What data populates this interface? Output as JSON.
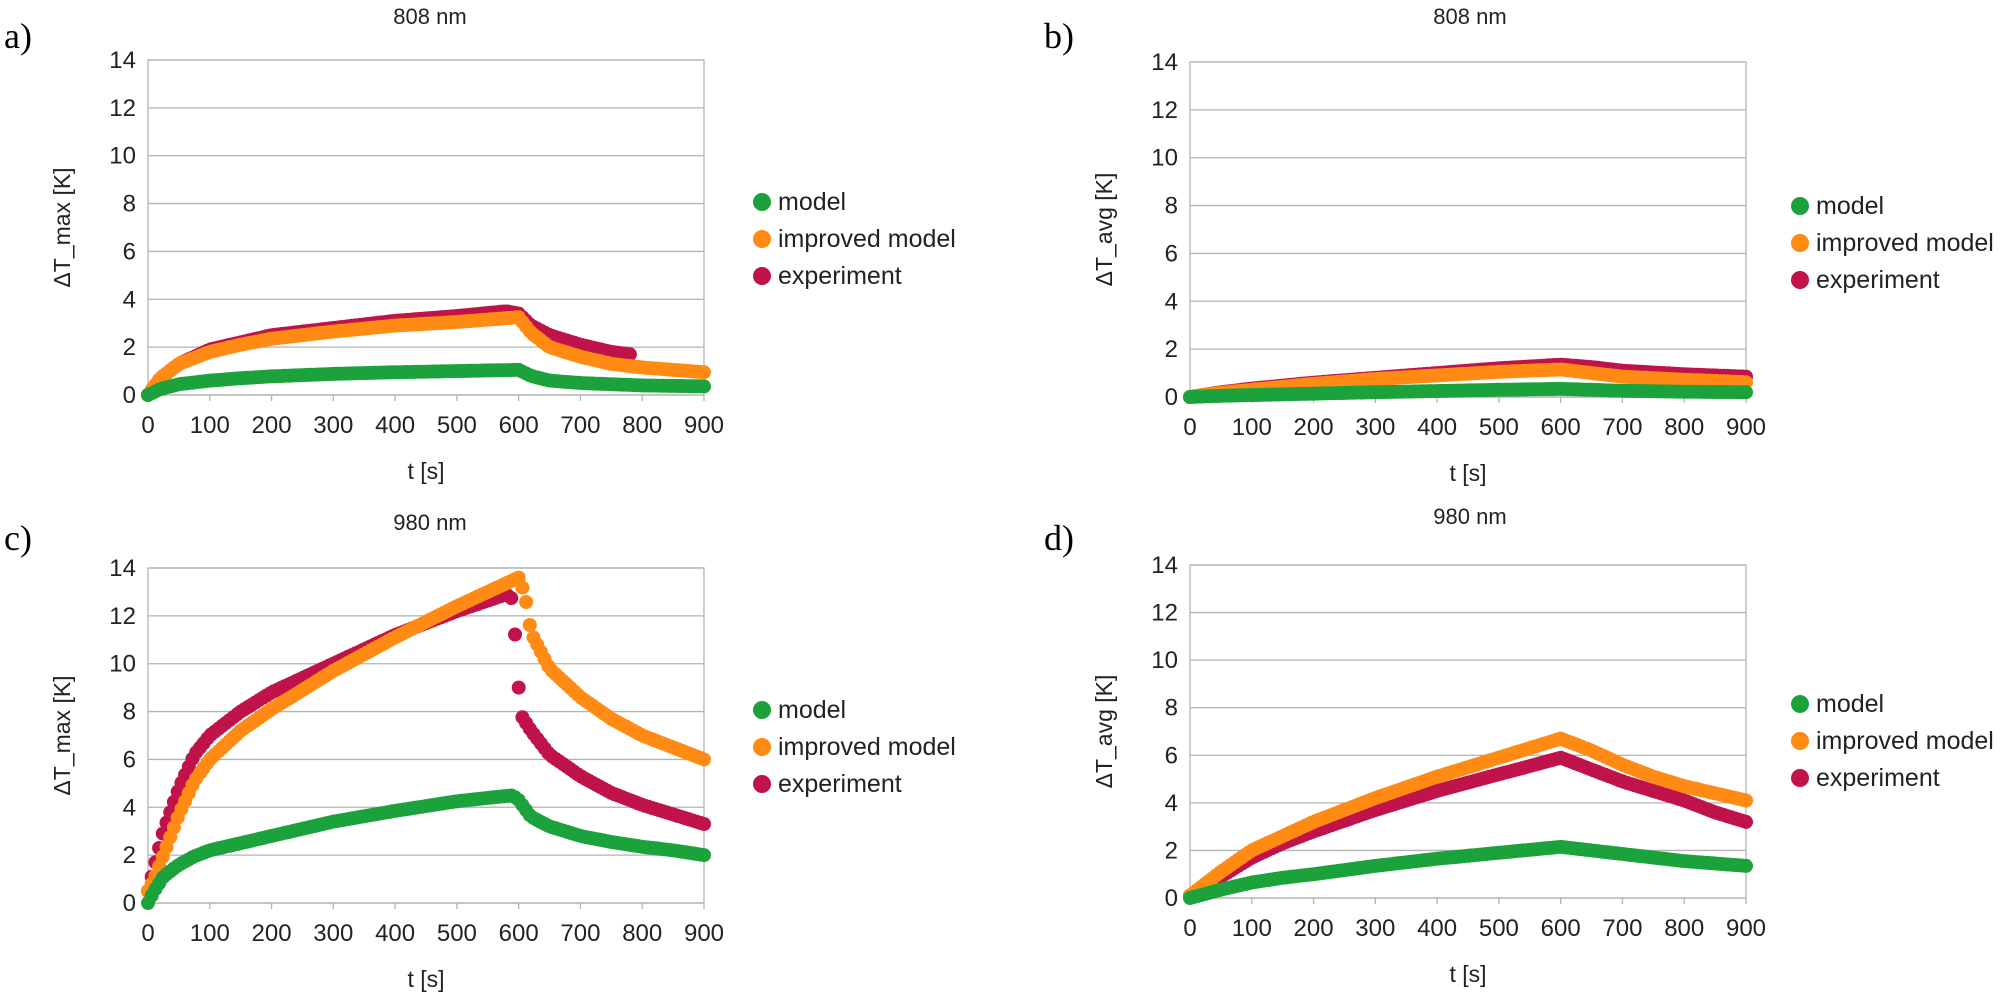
{
  "chart_data": [
    {
      "type": "scatter",
      "panel_label": "a)",
      "title": "808 nm",
      "xlabel": "t [s]",
      "ylabel": "ΔT_max [K]",
      "xlim": [
        0,
        900
      ],
      "ylim": [
        0,
        14
      ],
      "xticks": [
        "0",
        "100",
        "200",
        "300",
        "400",
        "500",
        "600",
        "700",
        "800",
        "900"
      ],
      "yticks": [
        "0",
        "2",
        "4",
        "6",
        "8",
        "10",
        "12",
        "14"
      ],
      "legend": "right",
      "series": [
        {
          "name": "experiment",
          "color": "#c0134a",
          "x": [
            0,
            20,
            50,
            100,
            150,
            200,
            300,
            400,
            500,
            580,
            600,
            620,
            650,
            700,
            750,
            780
          ],
          "y": [
            0,
            0.7,
            1.3,
            1.9,
            2.2,
            2.5,
            2.8,
            3.1,
            3.3,
            3.5,
            3.4,
            2.9,
            2.5,
            2.1,
            1.8,
            1.7
          ]
        },
        {
          "name": "improved model",
          "color": "#ff8a14",
          "x": [
            0,
            20,
            50,
            100,
            150,
            200,
            300,
            400,
            500,
            600,
            620,
            650,
            700,
            750,
            800,
            850,
            900
          ],
          "y": [
            0,
            0.7,
            1.3,
            1.8,
            2.1,
            2.35,
            2.65,
            2.9,
            3.05,
            3.25,
            2.6,
            2.0,
            1.6,
            1.3,
            1.15,
            1.05,
            0.95
          ]
        },
        {
          "name": "model",
          "color": "#1ca23c",
          "x": [
            0,
            20,
            50,
            100,
            150,
            200,
            300,
            400,
            500,
            600,
            620,
            650,
            700,
            750,
            800,
            850,
            900
          ],
          "y": [
            0,
            0.25,
            0.45,
            0.6,
            0.7,
            0.78,
            0.88,
            0.95,
            1.0,
            1.05,
            0.8,
            0.6,
            0.5,
            0.45,
            0.4,
            0.38,
            0.36
          ]
        }
      ]
    },
    {
      "type": "scatter",
      "panel_label": "b)",
      "title": "808 nm",
      "xlabel": "t [s]",
      "ylabel": "ΔT_avg [K]",
      "xlim": [
        0,
        900
      ],
      "ylim": [
        0,
        14
      ],
      "xticks": [
        "0",
        "100",
        "200",
        "300",
        "400",
        "500",
        "600",
        "700",
        "800",
        "900"
      ],
      "yticks": [
        "0",
        "2",
        "4",
        "6",
        "8",
        "10",
        "12",
        "14"
      ],
      "legend": "right",
      "series": [
        {
          "name": "experiment",
          "color": "#c0134a",
          "x": [
            0,
            50,
            100,
            200,
            300,
            400,
            500,
            600,
            650,
            700,
            800,
            900
          ],
          "y": [
            0,
            0.2,
            0.35,
            0.6,
            0.8,
            1.0,
            1.2,
            1.35,
            1.25,
            1.1,
            0.95,
            0.85
          ]
        },
        {
          "name": "improved model",
          "color": "#ff8a14",
          "x": [
            0,
            50,
            100,
            200,
            300,
            400,
            500,
            600,
            650,
            700,
            800,
            900
          ],
          "y": [
            0,
            0.18,
            0.3,
            0.55,
            0.75,
            0.9,
            1.05,
            1.15,
            1.0,
            0.85,
            0.72,
            0.62
          ]
        },
        {
          "name": "model",
          "color": "#1ca23c",
          "x": [
            0,
            50,
            100,
            200,
            300,
            400,
            500,
            600,
            650,
            700,
            800,
            900
          ],
          "y": [
            0,
            0.05,
            0.08,
            0.14,
            0.2,
            0.25,
            0.3,
            0.34,
            0.3,
            0.26,
            0.22,
            0.2
          ]
        }
      ]
    },
    {
      "type": "scatter",
      "panel_label": "c)",
      "title": "980  nm",
      "xlabel": "t [s]",
      "ylabel": "ΔT_max [K]",
      "xlim": [
        0,
        900
      ],
      "ylim": [
        0,
        14
      ],
      "xticks": [
        "0",
        "100",
        "200",
        "300",
        "400",
        "500",
        "600",
        "700",
        "800",
        "900"
      ],
      "yticks": [
        "0",
        "2",
        "4",
        "6",
        "8",
        "10",
        "12",
        "14"
      ],
      "legend": "right",
      "series": [
        {
          "name": "experiment",
          "color": "#c0134a",
          "x": [
            0,
            10,
            25,
            50,
            75,
            100,
            150,
            200,
            300,
            400,
            500,
            580,
            590,
            600,
            605,
            620,
            650,
            700,
            750,
            800,
            850,
            900
          ],
          "y": [
            0.5,
            1.5,
            3.0,
            4.8,
            6.2,
            7.0,
            8.0,
            8.8,
            10.0,
            11.2,
            12.2,
            12.9,
            12.7,
            9.0,
            7.8,
            7.2,
            6.2,
            5.3,
            4.6,
            4.1,
            3.7,
            3.3
          ]
        },
        {
          "name": "improved model",
          "color": "#ff8a14",
          "x": [
            0,
            10,
            25,
            50,
            75,
            100,
            150,
            200,
            300,
            400,
            500,
            600,
            610,
            620,
            650,
            700,
            750,
            800,
            850,
            900
          ],
          "y": [
            0.5,
            1.0,
            2.0,
            3.7,
            5.1,
            6.0,
            7.2,
            8.1,
            9.7,
            11.1,
            12.4,
            13.6,
            12.9,
            11.3,
            9.8,
            8.6,
            7.7,
            7.0,
            6.5,
            6.0
          ]
        },
        {
          "name": "model",
          "color": "#1ca23c",
          "x": [
            0,
            10,
            25,
            50,
            75,
            100,
            150,
            200,
            300,
            400,
            500,
            590,
            600,
            620,
            650,
            700,
            750,
            800,
            850,
            900
          ],
          "y": [
            0,
            0.5,
            1.1,
            1.6,
            1.95,
            2.2,
            2.5,
            2.8,
            3.4,
            3.85,
            4.25,
            4.5,
            4.3,
            3.6,
            3.2,
            2.8,
            2.55,
            2.35,
            2.2,
            2.0
          ]
        }
      ]
    },
    {
      "type": "scatter",
      "panel_label": "d)",
      "title": "980  nm",
      "xlabel": "t [s]",
      "ylabel": "ΔT_avg [K]",
      "xlim": [
        0,
        900
      ],
      "ylim": [
        0,
        14
      ],
      "xticks": [
        "0",
        "100",
        "200",
        "300",
        "400",
        "500",
        "600",
        "700",
        "800",
        "900"
      ],
      "yticks": [
        "0",
        "2",
        "4",
        "6",
        "8",
        "10",
        "12",
        "14"
      ],
      "legend": "right",
      "series": [
        {
          "name": "experiment",
          "color": "#c0134a",
          "x": [
            0,
            50,
            100,
            150,
            200,
            300,
            400,
            500,
            600,
            650,
            700,
            750,
            800,
            850,
            900
          ],
          "y": [
            0.1,
            0.9,
            1.7,
            2.3,
            2.8,
            3.7,
            4.5,
            5.2,
            5.9,
            5.4,
            4.9,
            4.5,
            4.1,
            3.6,
            3.2
          ]
        },
        {
          "name": "improved model",
          "color": "#ff8a14",
          "x": [
            0,
            50,
            100,
            150,
            200,
            300,
            400,
            500,
            600,
            650,
            700,
            750,
            800,
            850,
            900
          ],
          "y": [
            0.1,
            1.1,
            2.0,
            2.6,
            3.2,
            4.2,
            5.1,
            5.9,
            6.7,
            6.2,
            5.6,
            5.1,
            4.7,
            4.4,
            4.1
          ]
        },
        {
          "name": "model",
          "color": "#1ca23c",
          "x": [
            0,
            50,
            100,
            150,
            200,
            300,
            400,
            500,
            600,
            650,
            700,
            750,
            800,
            850,
            900
          ],
          "y": [
            0,
            0.35,
            0.65,
            0.85,
            1.0,
            1.35,
            1.65,
            1.9,
            2.15,
            2.0,
            1.85,
            1.7,
            1.55,
            1.45,
            1.35
          ]
        }
      ]
    }
  ]
}
